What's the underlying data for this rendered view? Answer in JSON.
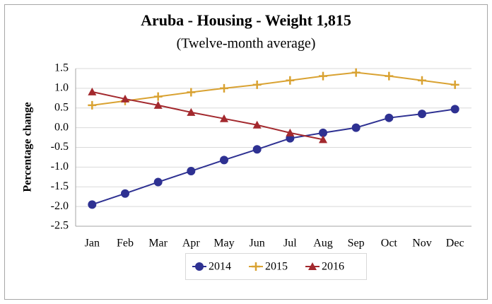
{
  "chart_data": {
    "type": "line",
    "title": "Aruba - Housing - Weight 1,815",
    "subtitle": "(Twelve-month average)",
    "y_label": "Percentage change",
    "categories": [
      "Jan",
      "Feb",
      "Mar",
      "Apr",
      "May",
      "Jun",
      "Jul",
      "Aug",
      "Sep",
      "Oct",
      "Nov",
      "Dec"
    ],
    "series": [
      {
        "name": "2014",
        "color": "#2e3192",
        "marker": "circle",
        "values": [
          -1.95,
          -1.67,
          -1.38,
          -1.1,
          -0.82,
          -0.55,
          -0.27,
          -0.13,
          0.0,
          0.25,
          0.35,
          0.47
        ]
      },
      {
        "name": "2015",
        "color": "#d9a232",
        "marker": "plus",
        "values": [
          0.57,
          0.68,
          0.79,
          0.9,
          1.0,
          1.09,
          1.2,
          1.31,
          1.4,
          1.31,
          1.2,
          1.09
        ]
      },
      {
        "name": "2016",
        "color": "#a3292e",
        "marker": "triangle",
        "values": [
          0.91,
          0.73,
          0.57,
          0.39,
          0.23,
          0.07,
          -0.13,
          -0.3,
          null,
          null,
          null,
          null
        ]
      }
    ],
    "ylim": [
      -2.5,
      1.5
    ],
    "yticks": [
      {
        "value": -2.5,
        "label": "-2.5"
      },
      {
        "value": -2,
        "label": "-2.0"
      },
      -1.5,
      {
        "value": -1,
        "label": "-1.0"
      },
      -0.5,
      {
        "value": 0,
        "label": "0.0"
      },
      0.5,
      {
        "value": 1,
        "label": "1.0"
      },
      1.5
    ],
    "grid": true,
    "legend": "bottom"
  }
}
